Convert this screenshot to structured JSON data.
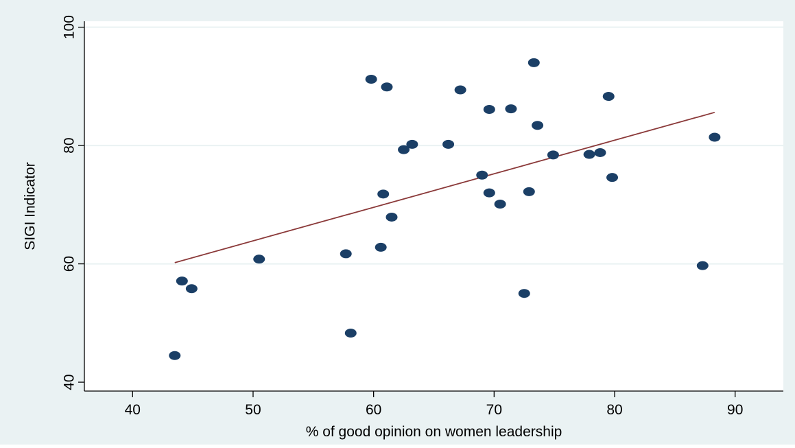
{
  "chart_data": {
    "type": "scatter",
    "xlabel": "% of good opinion on women leadership",
    "ylabel": "SIGI Indicator",
    "xlim": [
      36,
      94
    ],
    "ylim": [
      38.5,
      101
    ],
    "xticks": [
      40,
      50,
      60,
      70,
      80,
      90
    ],
    "yticks": [
      40,
      60,
      80,
      100
    ],
    "grid": "horizontal",
    "colors": {
      "outer_background": "#eaf2f3",
      "plot_background": "#ffffff",
      "points": "#1b3f66",
      "fit_line": "#8b3a3a",
      "gridline": "#eaf2f3",
      "axis": "#000000"
    },
    "points": [
      {
        "x": 43.5,
        "y": 44.5
      },
      {
        "x": 44.1,
        "y": 57.1
      },
      {
        "x": 44.9,
        "y": 55.8
      },
      {
        "x": 50.5,
        "y": 60.8
      },
      {
        "x": 57.7,
        "y": 61.7
      },
      {
        "x": 58.1,
        "y": 48.3
      },
      {
        "x": 59.8,
        "y": 91.2
      },
      {
        "x": 60.6,
        "y": 62.8
      },
      {
        "x": 60.8,
        "y": 71.8
      },
      {
        "x": 61.1,
        "y": 89.9
      },
      {
        "x": 61.5,
        "y": 67.9
      },
      {
        "x": 62.5,
        "y": 79.3
      },
      {
        "x": 63.2,
        "y": 80.2
      },
      {
        "x": 66.2,
        "y": 80.2
      },
      {
        "x": 67.2,
        "y": 89.4
      },
      {
        "x": 69.0,
        "y": 75.0
      },
      {
        "x": 69.6,
        "y": 86.1
      },
      {
        "x": 69.6,
        "y": 72.0
      },
      {
        "x": 70.5,
        "y": 70.1
      },
      {
        "x": 71.4,
        "y": 86.2
      },
      {
        "x": 72.5,
        "y": 55.0
      },
      {
        "x": 72.9,
        "y": 72.2
      },
      {
        "x": 73.3,
        "y": 94.0
      },
      {
        "x": 73.6,
        "y": 83.4
      },
      {
        "x": 74.9,
        "y": 78.4
      },
      {
        "x": 77.9,
        "y": 78.5
      },
      {
        "x": 78.8,
        "y": 78.8
      },
      {
        "x": 79.5,
        "y": 88.3
      },
      {
        "x": 79.8,
        "y": 74.6
      },
      {
        "x": 87.3,
        "y": 59.7
      },
      {
        "x": 88.3,
        "y": 81.4
      }
    ],
    "fit_line": {
      "x": [
        43.5,
        88.3
      ],
      "y": [
        60.2,
        85.6
      ]
    }
  }
}
